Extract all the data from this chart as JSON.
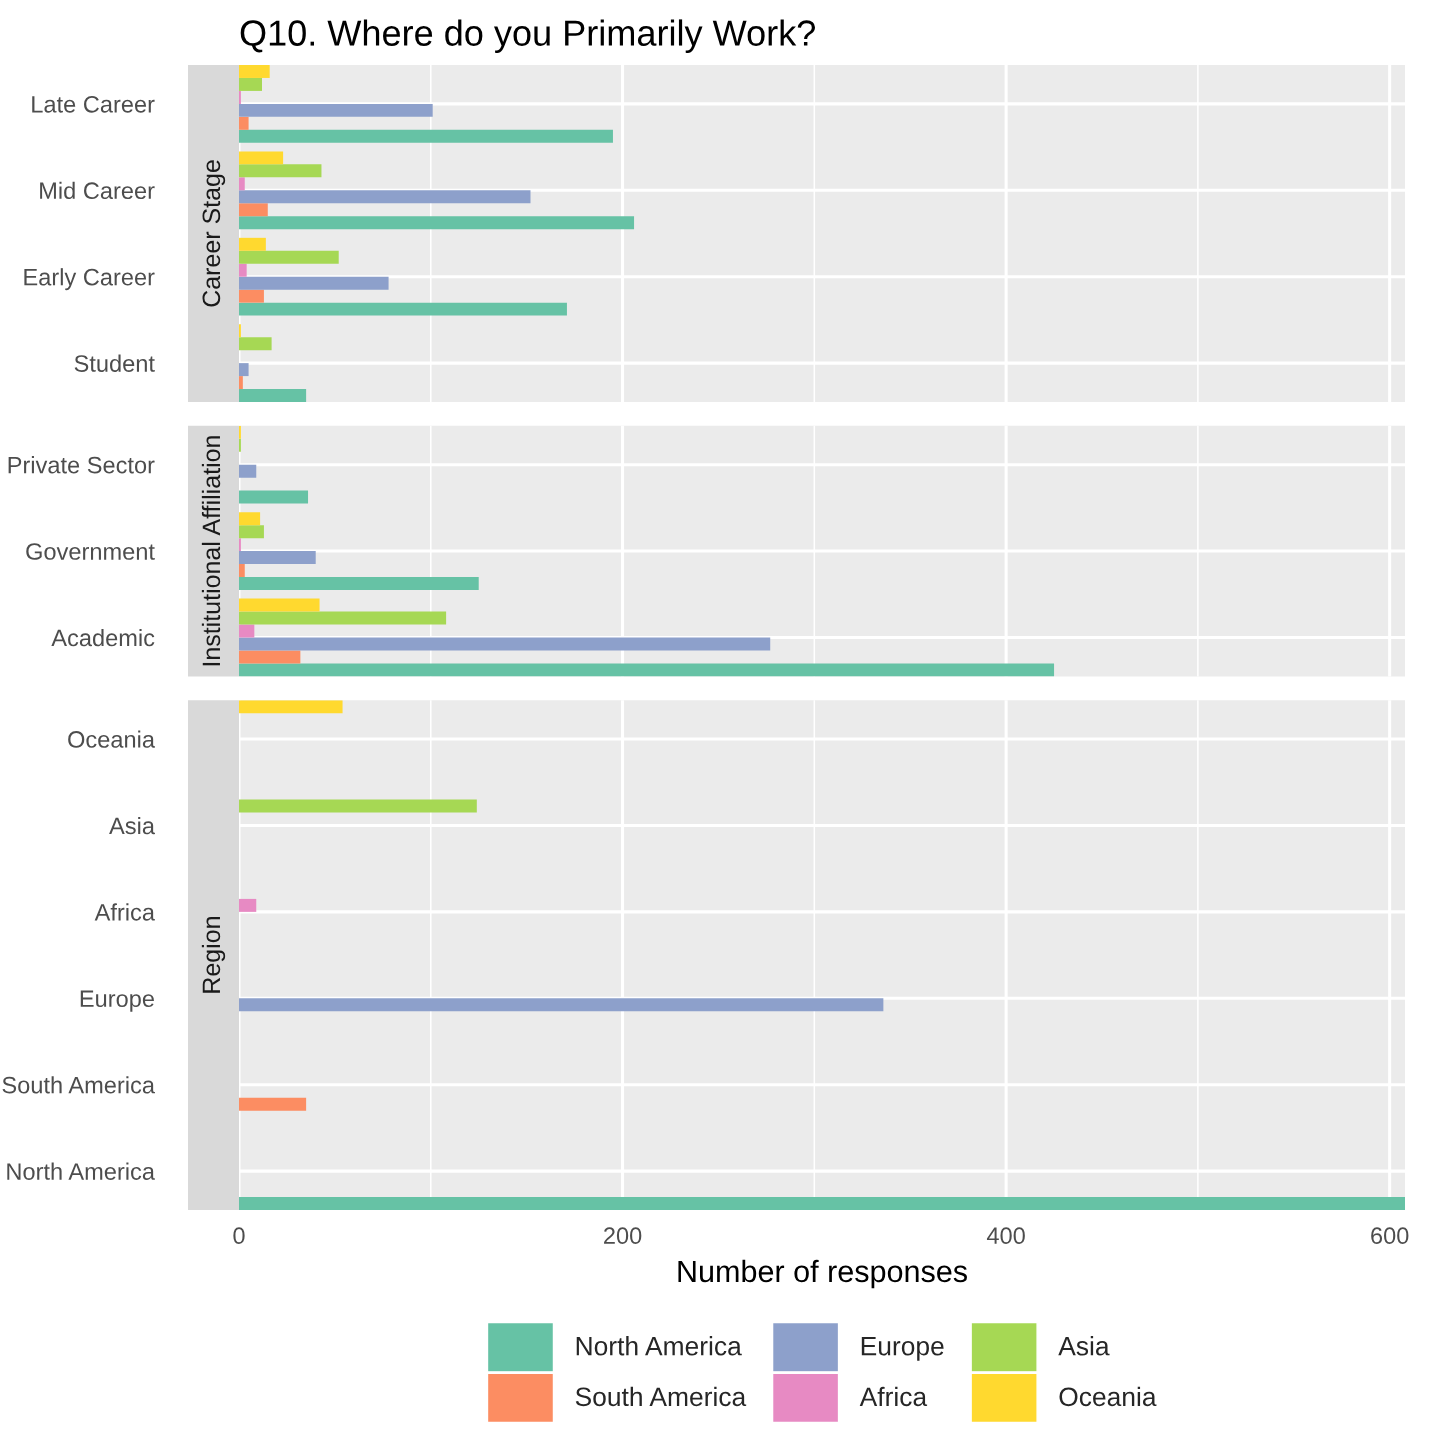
{
  "chart_data": [
    {
      "type": "bar",
      "orientation": "horizontal",
      "title": "Q10. Where do you Primarily Work?",
      "ylabel": "Career Stage",
      "categories": [
        "Late Career",
        "Mid Career",
        "Early Career",
        "Student"
      ],
      "xlim": [
        0,
        608
      ],
      "xticks": [
        0,
        200,
        400,
        600
      ],
      "grid": true,
      "tick_labels": "y",
      "series": [
        {
          "color": "#66c2a5",
          "values": [
            195,
            206,
            171,
            35
          ]
        },
        {
          "color": "#fc8d62",
          "values": [
            5,
            15,
            13,
            2
          ]
        },
        {
          "color": "#8da0cb",
          "values": [
            101,
            152,
            78,
            5
          ]
        },
        {
          "color": "#e78ac3",
          "values": [
            1,
            3,
            4,
            null
          ]
        },
        {
          "color": "#a6d854",
          "values": [
            12,
            43,
            52,
            17
          ]
        },
        {
          "color": "#ffd92f",
          "values": [
            16,
            23,
            14,
            1
          ]
        }
      ]
    },
    {
      "type": "bar",
      "orientation": "horizontal",
      "ylabel": "Institutional Affiliation",
      "categories": [
        "Private Sector",
        "Government",
        "Academic"
      ],
      "xlim": [
        0,
        608
      ],
      "xticks": [
        0,
        200,
        400,
        600
      ],
      "grid": true,
      "tick_labels": "y",
      "series": [
        {
          "color": "#66c2a5",
          "values": [
            36,
            125,
            425
          ]
        },
        {
          "color": "#fc8d62",
          "values": [
            null,
            3,
            32
          ]
        },
        {
          "color": "#8da0cb",
          "values": [
            9,
            40,
            277
          ]
        },
        {
          "color": "#e78ac3",
          "values": [
            null,
            1,
            8
          ]
        },
        {
          "color": "#a6d854",
          "values": [
            1,
            13,
            108
          ]
        },
        {
          "color": "#ffd92f",
          "values": [
            1,
            11,
            42
          ]
        }
      ]
    },
    {
      "type": "bar",
      "orientation": "horizontal",
      "ylabel": "Region",
      "xlabel": "Number of responses",
      "categories": [
        "Oceania",
        "Asia",
        "Africa",
        "Europe",
        "South America",
        "North America"
      ],
      "xlim": [
        0,
        608
      ],
      "xticks": [
        0,
        200,
        400,
        600
      ],
      "grid": true,
      "legend": "bottom",
      "series": [
        {
          "name": "North America",
          "color": "#66c2a5",
          "values": [
            null,
            null,
            null,
            null,
            null,
            608
          ]
        },
        {
          "name": "South America",
          "color": "#fc8d62",
          "values": [
            null,
            null,
            null,
            null,
            35,
            null
          ]
        },
        {
          "name": "Europe",
          "color": "#8da0cb",
          "values": [
            null,
            null,
            null,
            336,
            null,
            null
          ]
        },
        {
          "name": "Africa",
          "color": "#e78ac3",
          "values": [
            null,
            null,
            9,
            null,
            null,
            null
          ]
        },
        {
          "name": "Asia",
          "color": "#a6d854",
          "values": [
            null,
            124,
            null,
            null,
            null,
            null
          ]
        },
        {
          "name": "Oceania",
          "color": "#ffd92f",
          "values": [
            54,
            null,
            null,
            null,
            null,
            null
          ]
        }
      ]
    }
  ]
}
